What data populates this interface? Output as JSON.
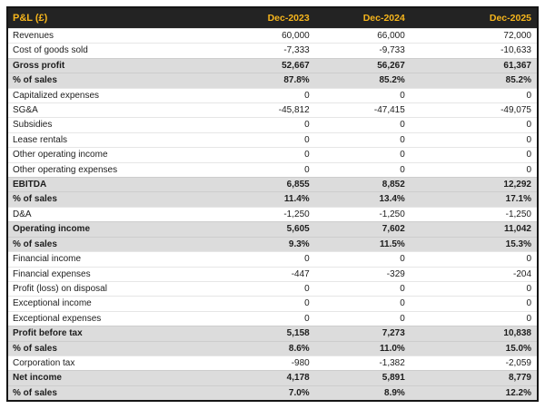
{
  "table": {
    "title": "P&L (£)",
    "columns": [
      "Dec-2023",
      "Dec-2024",
      "Dec-2025"
    ],
    "colors": {
      "header_background": "#232323",
      "header_text": "#f6b51c",
      "emphasis_row_background": "#dcdcdc",
      "body_text": "#1d1d1d",
      "table_border": "#151515"
    },
    "rows": [
      {
        "label": "Revenues",
        "values": [
          "60,000",
          "66,000",
          "72,000"
        ],
        "emphasis": false
      },
      {
        "label": "Cost of goods sold",
        "values": [
          "-7,333",
          "-9,733",
          "-10,633"
        ],
        "emphasis": false
      },
      {
        "label": "Gross profit",
        "values": [
          "52,667",
          "56,267",
          "61,367"
        ],
        "emphasis": true
      },
      {
        "label": "% of sales",
        "values": [
          "87.8%",
          "85.2%",
          "85.2%"
        ],
        "emphasis": true
      },
      {
        "label": "Capitalized expenses",
        "values": [
          "0",
          "0",
          "0"
        ],
        "emphasis": false
      },
      {
        "label": "SG&A",
        "values": [
          "-45,812",
          "-47,415",
          "-49,075"
        ],
        "emphasis": false
      },
      {
        "label": "Subsidies",
        "values": [
          "0",
          "0",
          "0"
        ],
        "emphasis": false
      },
      {
        "label": "Lease rentals",
        "values": [
          "0",
          "0",
          "0"
        ],
        "emphasis": false
      },
      {
        "label": "Other operating income",
        "values": [
          "0",
          "0",
          "0"
        ],
        "emphasis": false
      },
      {
        "label": "Other operating expenses",
        "values": [
          "0",
          "0",
          "0"
        ],
        "emphasis": false
      },
      {
        "label": "EBITDA",
        "values": [
          "6,855",
          "8,852",
          "12,292"
        ],
        "emphasis": true
      },
      {
        "label": "% of sales",
        "values": [
          "11.4%",
          "13.4%",
          "17.1%"
        ],
        "emphasis": true
      },
      {
        "label": "D&A",
        "values": [
          "-1,250",
          "-1,250",
          "-1,250"
        ],
        "emphasis": false
      },
      {
        "label": "Operating income",
        "values": [
          "5,605",
          "7,602",
          "11,042"
        ],
        "emphasis": true
      },
      {
        "label": "% of sales",
        "values": [
          "9.3%",
          "11.5%",
          "15.3%"
        ],
        "emphasis": true
      },
      {
        "label": "Financial income",
        "values": [
          "0",
          "0",
          "0"
        ],
        "emphasis": false
      },
      {
        "label": "Financial expenses",
        "values": [
          "-447",
          "-329",
          "-204"
        ],
        "emphasis": false
      },
      {
        "label": "Profit (loss) on disposal",
        "values": [
          "0",
          "0",
          "0"
        ],
        "emphasis": false
      },
      {
        "label": "Exceptional income",
        "values": [
          "0",
          "0",
          "0"
        ],
        "emphasis": false
      },
      {
        "label": "Exceptional expenses",
        "values": [
          "0",
          "0",
          "0"
        ],
        "emphasis": false
      },
      {
        "label": "Profit before tax",
        "values": [
          "5,158",
          "7,273",
          "10,838"
        ],
        "emphasis": true
      },
      {
        "label": "% of sales",
        "values": [
          "8.6%",
          "11.0%",
          "15.0%"
        ],
        "emphasis": true
      },
      {
        "label": "Corporation tax",
        "values": [
          "-980",
          "-1,382",
          "-2,059"
        ],
        "emphasis": false
      },
      {
        "label": "Net income",
        "values": [
          "4,178",
          "5,891",
          "8,779"
        ],
        "emphasis": true
      },
      {
        "label": "% of sales",
        "values": [
          "7.0%",
          "8.9%",
          "12.2%"
        ],
        "emphasis": true
      }
    ]
  }
}
